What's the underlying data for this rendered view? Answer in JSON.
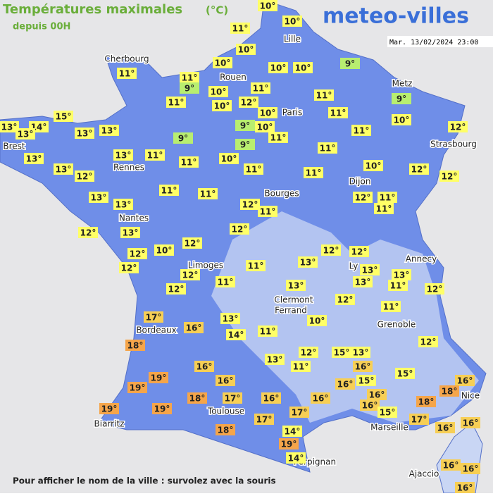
{
  "header": {
    "title": "Températures maximales",
    "unit": "(°C)",
    "subtitle": "depuis 00H",
    "logo": "meteo-villes",
    "timestamp": "Mar. 13/02/2024 23:00"
  },
  "cities": [
    "Cherbourg",
    "Rouen",
    "Lille",
    "Paris",
    "Metz",
    "Strasbourg",
    "Brest",
    "Rennes",
    "Nantes",
    "Dijon",
    "Bourges",
    "Limoges",
    "Ly",
    "Clermont",
    "Ferrand",
    "Annecy",
    "Grenoble",
    "Bordeaux",
    "Toulouse",
    "Biarritz",
    "Perpignan",
    "Marseille",
    "Nice",
    "Ajaccio"
  ],
  "temperatures": [
    "10°",
    "11°",
    "10°",
    "10°",
    "9°",
    "10°",
    "10°",
    "10°",
    "11°",
    "11°",
    "9°",
    "10°",
    "11°",
    "11°",
    "9°",
    "11°",
    "12°",
    "10°",
    "10°",
    "11°",
    "15°",
    "10°",
    "13°",
    "14°",
    "13°",
    "13°",
    "13°",
    "9°",
    "10°",
    "11°",
    "11°",
    "12°",
    "9°",
    "9°",
    "11°",
    "13°",
    "13°",
    "11°",
    "11°",
    "10°",
    "13°",
    "12°",
    "11°",
    "11°",
    "10°",
    "12°",
    "12°",
    "11°",
    "11°",
    "13°",
    "12°",
    "11°",
    "13°",
    "12°",
    "11°",
    "11°",
    "12°",
    "13°",
    "12°",
    "12°",
    "10°",
    "12°",
    "12°",
    "12°",
    "12°",
    "12°",
    "11°",
    "13°",
    "13°",
    "13°",
    "12°",
    "11°",
    "13°",
    "13°",
    "11°",
    "12°",
    "12°",
    "11°",
    "17°",
    "16°",
    "13°",
    "10°",
    "14°",
    "11°",
    "18°",
    "12°",
    "15°",
    "13°",
    "12°",
    "13°",
    "11°",
    "16°",
    "16°",
    "15°",
    "19°",
    "16°",
    "16°",
    "19°",
    "16°",
    "15°",
    "18°",
    "18°",
    "17°",
    "16°",
    "16°",
    "16°",
    "16°",
    "18°",
    "15°",
    "19°",
    "19°",
    "17°",
    "17°",
    "17°",
    "16°",
    "16°",
    "18°",
    "14°",
    "19°",
    "14°",
    "16°",
    "16°",
    "16°"
  ],
  "footer": "Pour afficher le nom de la ville : survolez avec la souris"
}
